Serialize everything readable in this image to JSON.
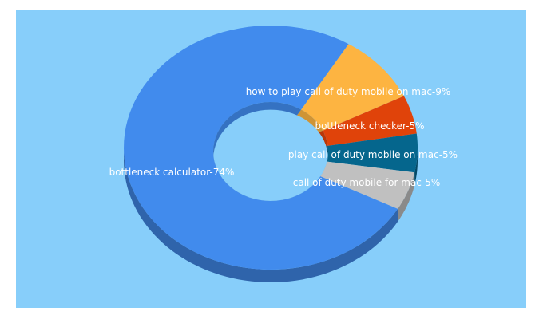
{
  "chart_data": {
    "type": "pie",
    "style": "3d-donut",
    "background_color": "#87CEFA",
    "slices": [
      {
        "label": "how to play call of duty mobile on mac-9%",
        "name": "how to play call of duty mobile on mac",
        "value": 9,
        "color": "#FDB441"
      },
      {
        "label": "bottleneck checker-5%",
        "name": "bottleneck checker",
        "value": 5,
        "color": "#E0430A"
      },
      {
        "label": "play call of duty mobile on mac-5%",
        "name": "play call of duty mobile on mac",
        "value": 5,
        "color": "#05668D"
      },
      {
        "label": "call of duty mobile for mac-5%",
        "name": "call of duty mobile for mac",
        "value": 5,
        "color": "#C0C0C0"
      },
      {
        "label": "bottleneck calculator-74%",
        "name": "bottleneck calculator",
        "value": 74,
        "color": "#418BED"
      }
    ]
  }
}
